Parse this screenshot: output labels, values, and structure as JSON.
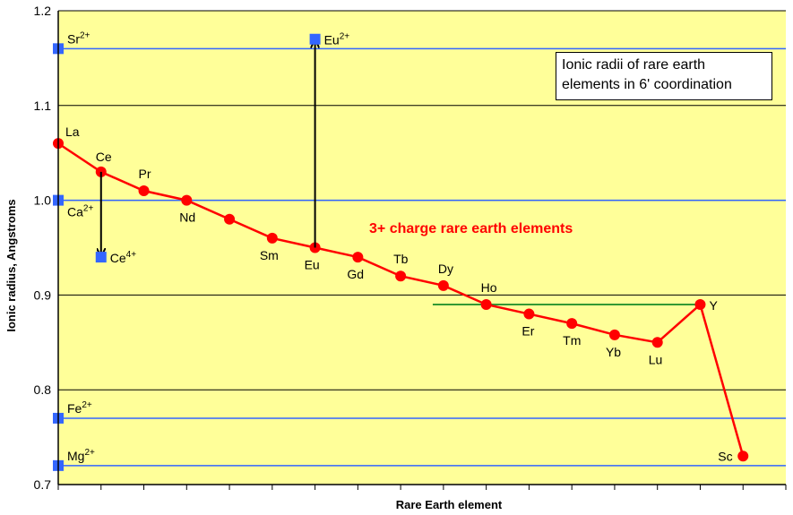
{
  "chart_data": {
    "type": "line",
    "xlabel": "Rare Earth element",
    "ylabel": "Ionic radius, Angstroms",
    "ylim": [
      0.7,
      1.2
    ],
    "yticks": [
      "0.7",
      "0.8",
      "0.9",
      "1.0",
      "1.1",
      "1.2"
    ],
    "grid": true,
    "background_color": "#ffff99",
    "box_text_line1": "Ionic radii of rare earth",
    "box_text_line2": "elements in 6' coordination",
    "series_annotation": "3+ charge rare earth elements",
    "series": [
      {
        "color": "#ff0000",
        "points": [
          {
            "x": 0,
            "y": 1.06,
            "label": "La"
          },
          {
            "x": 1,
            "y": 1.03,
            "label": "Ce"
          },
          {
            "x": 2,
            "y": 1.01,
            "label": "Pr"
          },
          {
            "x": 3,
            "y": 1.0,
            "label": "Nd"
          },
          {
            "x": 4,
            "y": 0.98,
            "label": ""
          },
          {
            "x": 5,
            "y": 0.96,
            "label": "Sm"
          },
          {
            "x": 6,
            "y": 0.95,
            "label": "Eu"
          },
          {
            "x": 7,
            "y": 0.94,
            "label": "Gd"
          },
          {
            "x": 8,
            "y": 0.92,
            "label": "Tb"
          },
          {
            "x": 9,
            "y": 0.91,
            "label": "Dy"
          },
          {
            "x": 10,
            "y": 0.89,
            "label": "Ho"
          },
          {
            "x": 11,
            "y": 0.88,
            "label": "Er"
          },
          {
            "x": 12,
            "y": 0.87,
            "label": "Tm"
          },
          {
            "x": 13,
            "y": 0.858,
            "label": "Yb"
          },
          {
            "x": 14,
            "y": 0.85,
            "label": "Lu"
          },
          {
            "x": 15,
            "y": 0.89,
            "label": "Y"
          },
          {
            "x": 16,
            "y": 0.73,
            "label": "Sc"
          }
        ]
      }
    ],
    "reference_ions": [
      {
        "ion": "Sr",
        "charge": "2+",
        "y": 1.16
      },
      {
        "ion": "Ca",
        "charge": "2+",
        "y": 1.0
      },
      {
        "ion": "Fe",
        "charge": "2+",
        "y": 0.77
      },
      {
        "ion": "Mg",
        "charge": "2+",
        "y": 0.72
      }
    ],
    "reference_line_color": "#3366ff",
    "extra_points": [
      {
        "ion": "Ce",
        "charge": "4+",
        "x": 1,
        "y": 0.94,
        "color": "#3366ff"
      },
      {
        "ion": "Eu",
        "charge": "2+",
        "x": 6,
        "y": 1.17,
        "color": "#3366ff"
      }
    ],
    "arrows": [
      {
        "from": {
          "x": 1,
          "y": 1.03
        },
        "to": {
          "x": 1,
          "y": 0.945
        }
      },
      {
        "from": {
          "x": 6,
          "y": 0.95
        },
        "to": {
          "x": 6,
          "y": 1.165
        }
      }
    ],
    "horizontal_segment": {
      "x_from": 8.75,
      "x_to": 15,
      "y": 0.89,
      "color": "#339933"
    }
  }
}
